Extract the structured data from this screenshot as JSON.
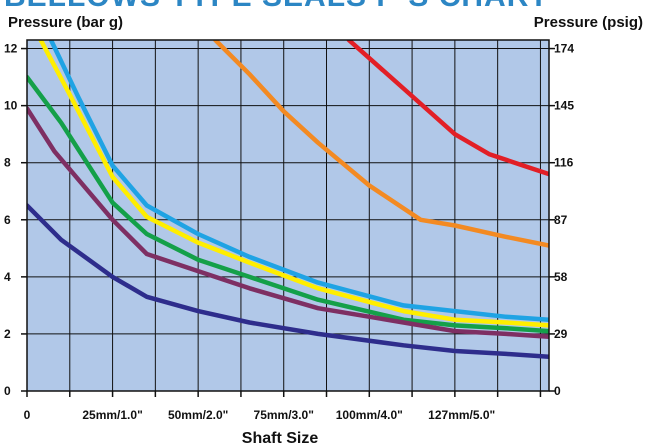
{
  "chart_data": {
    "type": "line",
    "title": "BELLOWS TYPE SEALS P-S CHART",
    "ylabel_left": "Pressure  (bar g)",
    "ylabel_right": "Pressure  (psig)",
    "xlabel": "Shaft Size",
    "x_ticks": [
      {
        "x": 0,
        "label": "0"
      },
      {
        "x": 25,
        "label": "25mm/1.0\""
      },
      {
        "x": 50,
        "label": "50mm/2.0\""
      },
      {
        "x": 75,
        "label": "75mm/3.0\""
      },
      {
        "x": 100,
        "label": "100mm/4.0\""
      },
      {
        "x": 127,
        "label": "127mm/5.0\""
      }
    ],
    "y_left_ticks": [
      "0",
      "2",
      "4",
      "6",
      "8",
      "10",
      "12"
    ],
    "y_right_ticks": [
      {
        "y": 0,
        "label": "0"
      },
      {
        "y": 2,
        "label": "29"
      },
      {
        "y": 4,
        "label": "58"
      },
      {
        "y": 6,
        "label": "87"
      },
      {
        "y": 8,
        "label": "116"
      },
      {
        "y": 10,
        "label": "145"
      },
      {
        "y": 12,
        "label": "174"
      }
    ],
    "xlim": [
      0,
      152.5
    ],
    "ylim": [
      0,
      12.3
    ],
    "grid": true,
    "plot_background": "#b1c8e8",
    "series": [
      {
        "color": "#e21f26",
        "x": [
          94,
          110,
          125,
          135,
          145,
          152.5
        ],
        "y": [
          12.3,
          10.6,
          9.0,
          8.3,
          7.9,
          7.6
        ]
      },
      {
        "color": "#f38a22",
        "x": [
          55,
          65,
          75,
          85,
          100,
          115,
          125,
          140,
          152.5
        ],
        "y": [
          12.3,
          11.1,
          9.8,
          8.7,
          7.2,
          6.0,
          5.8,
          5.4,
          5.1
        ]
      },
      {
        "color": "#1fa3e4",
        "x": [
          7,
          15,
          25,
          35,
          50,
          65,
          85,
          110,
          125,
          140,
          152.5
        ],
        "y": [
          12.3,
          10.3,
          7.9,
          6.5,
          5.5,
          4.7,
          3.8,
          3.0,
          2.8,
          2.6,
          2.5
        ]
      },
      {
        "color": "#ffee00",
        "x": [
          4,
          12,
          25,
          35,
          50,
          65,
          85,
          110,
          125,
          140,
          152.5
        ],
        "y": [
          12.3,
          10.5,
          7.5,
          6.1,
          5.2,
          4.5,
          3.6,
          2.8,
          2.5,
          2.4,
          2.3
        ]
      },
      {
        "color": "#14a049",
        "x": [
          0,
          10,
          25,
          35,
          50,
          65,
          85,
          110,
          125,
          140,
          152.5
        ],
        "y": [
          11.0,
          9.4,
          6.6,
          5.5,
          4.6,
          4.0,
          3.2,
          2.5,
          2.3,
          2.2,
          2.1
        ]
      },
      {
        "color": "#7e2f63",
        "x": [
          0,
          8,
          25,
          35,
          50,
          65,
          85,
          110,
          125,
          140,
          152.5
        ],
        "y": [
          9.9,
          8.4,
          6.0,
          4.8,
          4.2,
          3.6,
          2.9,
          2.4,
          2.1,
          2.0,
          1.9
        ]
      },
      {
        "color": "#2e2d8c",
        "x": [
          0,
          10,
          25,
          35,
          50,
          65,
          85,
          110,
          125,
          140,
          152.5
        ],
        "y": [
          6.5,
          5.3,
          4.0,
          3.3,
          2.8,
          2.4,
          2.0,
          1.6,
          1.4,
          1.3,
          1.2
        ]
      }
    ]
  }
}
